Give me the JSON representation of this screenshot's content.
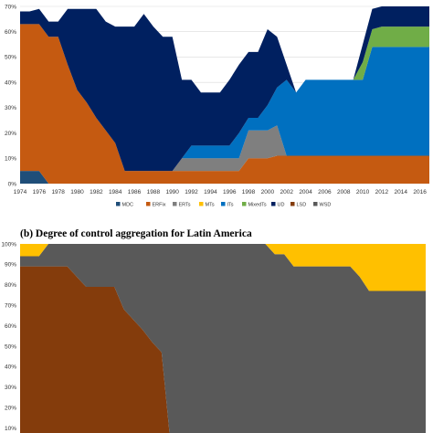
{
  "chart_data": [
    {
      "type": "area",
      "title": "",
      "xlabel": "",
      "ylabel": "",
      "ylim": [
        0,
        70
      ],
      "yticks": [
        "0%",
        "10%",
        "20%",
        "30%",
        "40%",
        "50%",
        "60%",
        "70%"
      ],
      "xlim": [
        1974,
        2017
      ],
      "xticks": [
        "1974",
        "1976",
        "1978",
        "1980",
        "1982",
        "1984",
        "1986",
        "1988",
        "1990",
        "1992",
        "1994",
        "1996",
        "1998",
        "2000",
        "2002",
        "2004",
        "2006",
        "2008",
        "2010",
        "2012",
        "2014",
        "2016"
      ],
      "stacked": true,
      "legend_position": "bottom",
      "x": [
        1974,
        1975,
        1976,
        1977,
        1978,
        1979,
        1980,
        1981,
        1982,
        1983,
        1984,
        1985,
        1986,
        1987,
        1988,
        1989,
        1990,
        1991,
        1992,
        1993,
        1994,
        1995,
        1996,
        1997,
        1998,
        1999,
        2000,
        2001,
        2002,
        2003,
        2004,
        2005,
        2006,
        2007,
        2008,
        2009,
        2010,
        2011,
        2012,
        2013,
        2014,
        2015,
        2016,
        2017
      ],
      "series": [
        {
          "name": "MDC",
          "color": "#1f4e79",
          "values": [
            5,
            5,
            5,
            0,
            0,
            0,
            0,
            0,
            0,
            0,
            0,
            0,
            0,
            0,
            0,
            0,
            0,
            0,
            0,
            0,
            0,
            0,
            0,
            0,
            0,
            0,
            0,
            0,
            0,
            0,
            0,
            0,
            0,
            0,
            0,
            0,
            0,
            0,
            0,
            0,
            0,
            0,
            0,
            0
          ]
        },
        {
          "name": "ERFix",
          "color": "#c55a11",
          "values": [
            58,
            58,
            58,
            58,
            58,
            47,
            37,
            32,
            26,
            21,
            16,
            5,
            5,
            5,
            5,
            5,
            5,
            5,
            5,
            5,
            5,
            5,
            5,
            5,
            10,
            10,
            10,
            11,
            11,
            11,
            11,
            11,
            11,
            11,
            11,
            11,
            11,
            11,
            11,
            11,
            11,
            11,
            11,
            11
          ]
        },
        {
          "name": "ERTs",
          "color": "#7f7f7f",
          "values": [
            0,
            0,
            0,
            0,
            0,
            0,
            0,
            0,
            0,
            0,
            0,
            0,
            0,
            0,
            0,
            0,
            0,
            5,
            5,
            5,
            5,
            5,
            5,
            5,
            11,
            11,
            11,
            12,
            0,
            0,
            0,
            0,
            0,
            0,
            0,
            0,
            0,
            0,
            0,
            0,
            0,
            0,
            0,
            0
          ]
        },
        {
          "name": "MTs",
          "color": "#ffc000",
          "values": [
            0,
            0,
            0,
            0,
            0,
            0,
            0,
            0,
            0,
            0,
            0,
            0,
            0,
            0,
            0,
            0,
            0,
            0,
            0,
            0,
            0,
            0,
            0,
            0,
            0,
            0,
            0,
            0,
            0,
            0,
            0,
            0,
            0,
            0,
            0,
            0,
            0,
            0,
            0,
            0,
            0,
            0,
            0,
            0
          ]
        },
        {
          "name": "ITs",
          "color": "#0070c0",
          "values": [
            0,
            0,
            0,
            0,
            0,
            0,
            0,
            0,
            0,
            0,
            0,
            0,
            0,
            0,
            0,
            0,
            0,
            0,
            5,
            5,
            5,
            5,
            5,
            10,
            5,
            5,
            10,
            15,
            30,
            25,
            30,
            30,
            30,
            30,
            30,
            30,
            30,
            43,
            43,
            43,
            43,
            43,
            43,
            43
          ]
        },
        {
          "name": "MixedTs",
          "color": "#70ad47",
          "values": [
            0,
            0,
            0,
            0,
            0,
            0,
            0,
            0,
            0,
            0,
            0,
            0,
            0,
            0,
            0,
            0,
            0,
            0,
            0,
            0,
            0,
            0,
            0,
            0,
            0,
            0,
            0,
            0,
            0,
            0,
            0,
            0,
            0,
            0,
            0,
            0,
            7,
            7,
            8,
            8,
            8,
            8,
            8,
            8
          ]
        },
        {
          "name": "UD",
          "color": "#002060",
          "values": [
            5,
            5,
            6,
            6,
            6,
            22,
            32,
            37,
            43,
            43,
            46,
            57,
            57,
            62,
            57,
            53,
            53,
            31,
            26,
            21,
            21,
            21,
            26,
            27,
            26,
            26,
            30,
            20,
            6,
            0,
            0,
            0,
            0,
            0,
            0,
            0,
            7,
            8,
            8,
            8,
            8,
            8,
            8,
            8
          ]
        },
        {
          "name": "LSD",
          "color": "#843c0c",
          "values": [
            0,
            0,
            0,
            0,
            0,
            0,
            0,
            0,
            0,
            0,
            0,
            0,
            0,
            0,
            0,
            0,
            0,
            0,
            0,
            0,
            0,
            0,
            0,
            0,
            0,
            0,
            0,
            0,
            0,
            0,
            0,
            0,
            0,
            0,
            0,
            0,
            0,
            0,
            0,
            0,
            0,
            0,
            0,
            0
          ]
        },
        {
          "name": "WSD",
          "color": "#595959",
          "values": [
            0,
            0,
            0,
            0,
            0,
            0,
            0,
            0,
            0,
            0,
            0,
            0,
            0,
            0,
            0,
            0,
            0,
            0,
            0,
            0,
            0,
            0,
            0,
            0,
            0,
            0,
            0,
            0,
            0,
            0,
            0,
            0,
            0,
            0,
            0,
            0,
            0,
            0,
            0,
            0,
            0,
            0,
            0,
            0
          ]
        }
      ]
    },
    {
      "type": "area",
      "title": "(b)  Degree of control aggregation for Latin America",
      "xlabel": "",
      "ylabel": "",
      "ylim": [
        0,
        100
      ],
      "yticks": [
        "0%",
        "10%",
        "20%",
        "30%",
        "40%",
        "50%",
        "60%",
        "70%",
        "80%",
        "90%",
        "100%"
      ],
      "xlim": [
        1974,
        2017
      ],
      "stacked": true,
      "x": [
        1974,
        1975,
        1976,
        1977,
        1978,
        1979,
        1980,
        1981,
        1982,
        1983,
        1984,
        1985,
        1986,
        1987,
        1988,
        1989,
        1990,
        1991,
        1992,
        1993,
        1994,
        1995,
        1996,
        1997,
        1998,
        1999,
        2000,
        2001,
        2002,
        2003,
        2004,
        2005,
        2006,
        2007,
        2008,
        2009,
        2010,
        2011,
        2012,
        2013,
        2014,
        2015,
        2016,
        2017
      ],
      "series": [
        {
          "name": "LSD",
          "color": "#843c0c",
          "values": [
            89,
            89,
            89,
            89,
            89,
            89,
            84,
            79,
            79,
            79,
            79,
            68,
            63,
            58,
            52,
            47,
            0,
            0,
            0,
            0,
            0,
            0,
            0,
            0,
            0,
            0,
            0,
            0,
            0,
            0,
            0,
            0,
            0,
            0,
            0,
            0,
            0,
            0,
            0,
            0,
            0,
            0,
            0,
            0
          ]
        },
        {
          "name": "WSD",
          "color": "#595959",
          "values": [
            5,
            5,
            5,
            11,
            11,
            11,
            16,
            21,
            21,
            21,
            21,
            32,
            37,
            42,
            48,
            53,
            100,
            100,
            100,
            100,
            100,
            100,
            100,
            100,
            100,
            100,
            100,
            95,
            95,
            89,
            89,
            89,
            89,
            89,
            89,
            89,
            84,
            77,
            77,
            77,
            77,
            77,
            77,
            77
          ]
        },
        {
          "name": "MTs",
          "color": "#ffc000",
          "values": [
            6,
            6,
            6,
            0,
            0,
            0,
            0,
            0,
            0,
            0,
            0,
            0,
            0,
            0,
            0,
            0,
            0,
            0,
            0,
            0,
            0,
            0,
            0,
            0,
            0,
            0,
            0,
            5,
            5,
            11,
            11,
            11,
            11,
            11,
            11,
            11,
            16,
            23,
            23,
            23,
            23,
            23,
            23,
            23
          ]
        }
      ]
    }
  ]
}
